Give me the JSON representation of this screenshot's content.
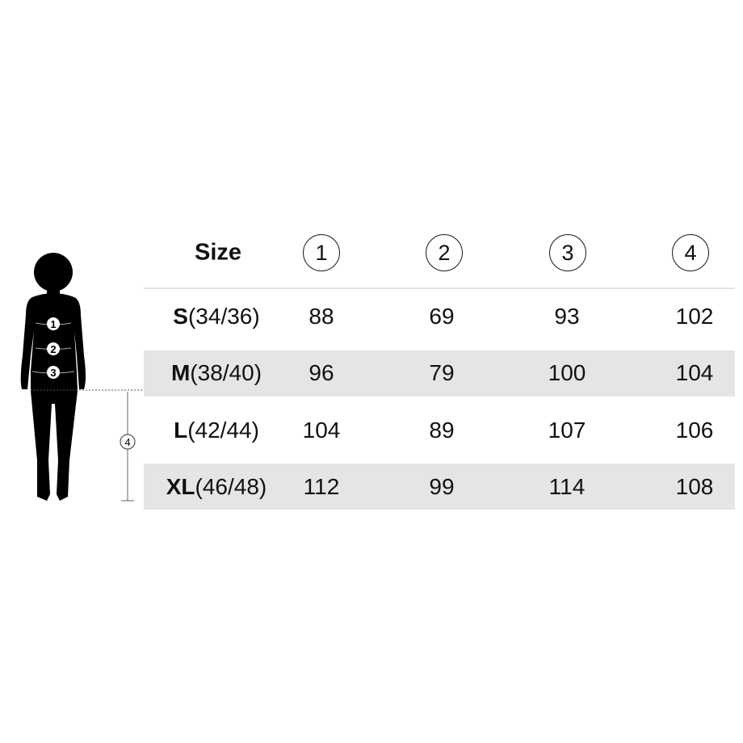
{
  "table": {
    "size_header": "Size",
    "columns": [
      "1",
      "2",
      "3",
      "4"
    ],
    "rows": [
      {
        "letter": "S",
        "range": "(34/36)",
        "values": [
          "88",
          "69",
          "93",
          "102"
        ]
      },
      {
        "letter": "M",
        "range": "(38/40)",
        "values": [
          "96",
          "79",
          "100",
          "104"
        ]
      },
      {
        "letter": "L",
        "range": "(42/44)",
        "values": [
          "104",
          "89",
          "107",
          "106"
        ]
      },
      {
        "letter": "XL",
        "range": "(46/48)",
        "values": [
          "112",
          "99",
          "114",
          "108"
        ]
      }
    ]
  },
  "figure": {
    "markers": [
      "1",
      "2",
      "3",
      "4"
    ],
    "fill_color": "#000000"
  },
  "colors": {
    "band": "#e5e5e5"
  }
}
